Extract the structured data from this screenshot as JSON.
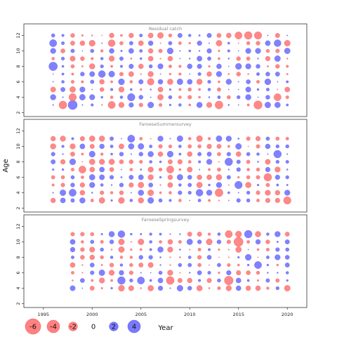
{
  "chart_data": {
    "type": "scatter",
    "subtype": "bubble-residual",
    "xlabel": "Year",
    "ylabel": "Age",
    "xlim": [
      1993,
      2022
    ],
    "ylim": [
      1.5,
      13.5
    ],
    "x_ticks": [
      1995,
      2000,
      2005,
      2010,
      2015,
      2020
    ],
    "y_ticks": [
      2,
      4,
      6,
      8,
      10,
      12
    ],
    "colors": {
      "positive": "#6b6bff",
      "negative": "#ff7373"
    },
    "legend": {
      "placement": "bottom",
      "values": [
        -6,
        -4,
        -2,
        0,
        2,
        4
      ],
      "labels": [
        "-6",
        "-4",
        "-2",
        "0",
        "2",
        "4"
      ]
    },
    "panels": [
      {
        "title": "Residual catch",
        "years": [
          1996,
          2020
        ],
        "ages": [
          3,
          4,
          5,
          6,
          7,
          8,
          9,
          10,
          11,
          12
        ],
        "emphasis": [
          {
            "year": 1996,
            "age": 8,
            "value": 4.2
          },
          {
            "year": 1996,
            "age": 11,
            "value": 3.0
          },
          {
            "year": 1998,
            "age": 3,
            "value": 4.8
          },
          {
            "year": 1997,
            "age": 3,
            "value": -3.5
          },
          {
            "year": 1998,
            "age": 4,
            "value": -3.2
          },
          {
            "year": 2001,
            "age": 7,
            "value": 2.8
          },
          {
            "year": 2002,
            "age": 11,
            "value": -2.8
          },
          {
            "year": 2002,
            "age": 3,
            "value": -3.0
          },
          {
            "year": 2004,
            "age": 4,
            "value": 3.2
          },
          {
            "year": 2006,
            "age": 6,
            "value": -2.6
          },
          {
            "year": 2013,
            "age": 3,
            "value": -3.6
          },
          {
            "year": 2015,
            "age": 12,
            "value": -3.0
          },
          {
            "year": 2016,
            "age": 12,
            "value": -3.4
          },
          {
            "year": 2017,
            "age": 3,
            "value": -4.0
          },
          {
            "year": 2017,
            "age": 12,
            "value": -3.2
          },
          {
            "year": 2019,
            "age": 4,
            "value": -3.0
          },
          {
            "year": 2019,
            "age": 11,
            "value": 2.8
          }
        ]
      },
      {
        "title": "FaroeseSummersurvey",
        "years": [
          1996,
          2020
        ],
        "ages": [
          3,
          4,
          5,
          6,
          7,
          8,
          9,
          10,
          11
        ],
        "emphasis": [
          {
            "year": 1998,
            "age": 4,
            "value": 3.0
          },
          {
            "year": 1999,
            "age": 7,
            "value": -3.0
          },
          {
            "year": 2004,
            "age": 11,
            "value": 3.0
          },
          {
            "year": 2008,
            "age": 7,
            "value": -3.0
          },
          {
            "year": 2011,
            "age": 4,
            "value": 2.8
          },
          {
            "year": 2013,
            "age": 4,
            "value": -3.6
          },
          {
            "year": 2014,
            "age": 8,
            "value": 3.4
          },
          {
            "year": 2015,
            "age": 5,
            "value": 3.2
          },
          {
            "year": 2018,
            "age": 6,
            "value": -3.4
          },
          {
            "year": 2019,
            "age": 9,
            "value": 3.4
          },
          {
            "year": 2020,
            "age": 3,
            "value": -3.2
          }
        ]
      },
      {
        "title": "FaroeseSpringsurvey",
        "years": [
          1998,
          2020
        ],
        "ages": [
          4,
          5,
          6,
          7,
          8,
          9,
          10,
          11
        ],
        "emphasis": [
          {
            "year": 2003,
            "age": 5,
            "value": 3.4
          },
          {
            "year": 2005,
            "age": 5,
            "value": 3.0
          },
          {
            "year": 2008,
            "age": 5,
            "value": -3.6
          },
          {
            "year": 2014,
            "age": 5,
            "value": -4.4
          },
          {
            "year": 2015,
            "age": 10,
            "value": -4.8
          },
          {
            "year": 2016,
            "age": 11,
            "value": 3.4
          },
          {
            "year": 2014,
            "age": 11,
            "value": -3.0
          },
          {
            "year": 2017,
            "age": 7,
            "value": 3.0
          },
          {
            "year": 2003,
            "age": 11,
            "value": 2.8
          }
        ]
      }
    ]
  }
}
